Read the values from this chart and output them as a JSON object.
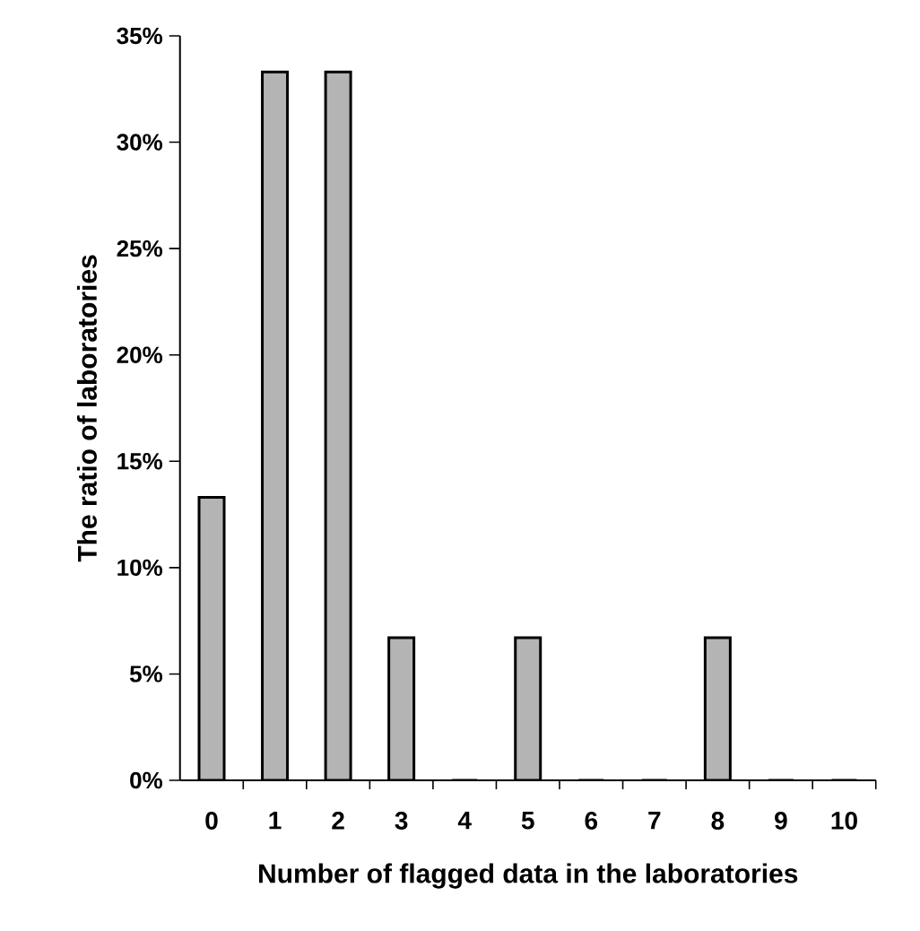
{
  "chart_data": {
    "type": "bar",
    "xlabel": "Number of flagged data in the laboratories",
    "ylabel": "The ratio of laboratories",
    "categories": [
      "0",
      "1",
      "2",
      "3",
      "4",
      "5",
      "6",
      "7",
      "8",
      "9",
      "10"
    ],
    "values": [
      13.3,
      33.3,
      33.3,
      6.7,
      0,
      6.7,
      0,
      0,
      6.7,
      0,
      0
    ],
    "color": "#b4b4b4",
    "ylim": [
      0,
      35
    ],
    "yticks": [
      {
        "value": 0,
        "label": "0%"
      },
      {
        "value": 5,
        "label": "5%"
      },
      {
        "value": 10,
        "label": "10%"
      },
      {
        "value": 15,
        "label": "15%"
      },
      {
        "value": 20,
        "label": "20%"
      },
      {
        "value": 25,
        "label": "25%"
      },
      {
        "value": 30,
        "label": "30%"
      },
      {
        "value": 35,
        "label": "35%"
      }
    ],
    "line_style": "solid"
  }
}
